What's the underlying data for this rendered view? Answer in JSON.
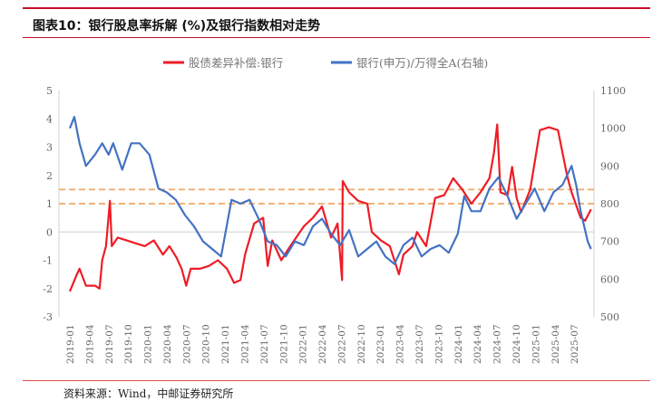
{
  "header": {
    "title": "图表10：银行股息率拆解 (%)及银行指数相对走势"
  },
  "footer": {
    "source": "资料来源：Wind，中邮证券研究所"
  },
  "chart_data": {
    "type": "line",
    "title": "图表10：银行股息率拆解 (%)及银行指数相对走势",
    "x_unit": "months since 2019-01",
    "x_tick_labels": [
      "2019-01",
      "2019-04",
      "2019-07",
      "2019-10",
      "2020-01",
      "2020-04",
      "2020-07",
      "2020-10",
      "2021-01",
      "2021-04",
      "2021-07",
      "2021-10",
      "2022-01",
      "2022-04",
      "2022-07",
      "2022-10",
      "2023-01",
      "2023-04",
      "2023-07",
      "2023-10",
      "2024-01",
      "2024-04",
      "2024-07",
      "2024-10",
      "2025-01",
      "2025-04",
      "2025-07"
    ],
    "y_left": {
      "min": -3,
      "max": 5,
      "ticks": [
        "-3",
        "-2",
        "-1",
        "0",
        "1",
        "2",
        "3",
        "4",
        "5"
      ]
    },
    "y_right": {
      "min": 500,
      "max": 1100,
      "ticks": [
        "500",
        "600",
        "700",
        "800",
        "900",
        "1000",
        "1100"
      ]
    },
    "reference_lines": [
      {
        "value": 1.5,
        "axis": "left",
        "color": "#f0a868"
      },
      {
        "value": 1.0,
        "axis": "left",
        "color": "#f0a868"
      }
    ],
    "legend_position": "top-center",
    "series": [
      {
        "name": "股债差异补偿:银行",
        "axis": "left",
        "color": "#ee1c25",
        "x": [
          0,
          1.1,
          1.5,
          2.5,
          3.9,
          4.6,
          5,
          5.6,
          6.2,
          6.5,
          7.4,
          8.8,
          10.2,
          11.6,
          13,
          14.4,
          15.4,
          16.5,
          17.3,
          18,
          18.7,
          20.1,
          21.5,
          22.9,
          24.3,
          25.4,
          26.4,
          27.1,
          28.5,
          29.9,
          30.6,
          31.3,
          32.7,
          34.1,
          36.2,
          37.6,
          39,
          40.4,
          41.4,
          42.1,
          42.2,
          43.2,
          44.6,
          46,
          46.7,
          48.1,
          49.5,
          50.9,
          51.6,
          53,
          53.7,
          55.1,
          56.5,
          57.9,
          59.3,
          60.7,
          62.1,
          63.5,
          64.9,
          65.6,
          66.1,
          66.6,
          67.7,
          68.4,
          69.1,
          69.8,
          71.2,
          72.7,
          74.1,
          75.5,
          76.9,
          77.6,
          79,
          79.7,
          80.6
        ],
        "y": [
          -2.1,
          -1.5,
          -1.3,
          -1.9,
          -1.9,
          -2.0,
          -1.0,
          -0.5,
          1.1,
          -0.5,
          -0.2,
          -0.3,
          -0.4,
          -0.5,
          -0.3,
          -0.8,
          -0.5,
          -0.9,
          -1.3,
          -1.9,
          -1.3,
          -1.3,
          -1.2,
          -1.0,
          -1.3,
          -1.8,
          -1.7,
          -0.8,
          0.3,
          0.5,
          -1.2,
          -0.3,
          -1.0,
          -0.5,
          0.2,
          0.5,
          0.9,
          -0.2,
          0.3,
          -1.7,
          1.8,
          1.4,
          1.1,
          1.0,
          0.0,
          -0.3,
          -0.5,
          -1.5,
          -0.8,
          -0.5,
          0.0,
          -0.5,
          1.2,
          1.3,
          1.9,
          1.5,
          1.0,
          1.4,
          1.9,
          2.8,
          3.8,
          1.4,
          1.3,
          2.3,
          1.2,
          0.7,
          1.5,
          3.6,
          3.7,
          3.6,
          2.0,
          1.4,
          0.5,
          0.4,
          0.8
        ]
      },
      {
        "name": "银行(申万)/万得全A(右轴)",
        "axis": "right",
        "color": "#4472c4",
        "x": [
          0,
          0.7,
          1.5,
          2.5,
          3.9,
          5,
          6,
          6.7,
          8.1,
          9.5,
          10.8,
          12.3,
          13.7,
          15,
          16.4,
          17.8,
          19.2,
          20.6,
          22,
          23.4,
          25,
          26.4,
          27.8,
          29.2,
          30.6,
          32,
          33.4,
          34.8,
          36.2,
          37.6,
          39,
          40.4,
          41.8,
          43.2,
          44.6,
          46,
          47.4,
          48.8,
          50.2,
          51.6,
          53,
          54.4,
          55.8,
          57.2,
          58.6,
          60,
          61,
          62.1,
          63.5,
          64.9,
          66.3,
          67.7,
          69.1,
          70.5,
          71.9,
          73.4,
          74.8,
          76.2,
          77.6,
          78.3,
          79,
          80.1,
          80.6
        ],
        "y": [
          1000,
          1030,
          960,
          900,
          930,
          960,
          930,
          960,
          890,
          960,
          960,
          930,
          840,
          830,
          810,
          770,
          740,
          700,
          680,
          660,
          810,
          800,
          810,
          760,
          700,
          690,
          660,
          700,
          690,
          740,
          760,
          720,
          690,
          730,
          660,
          680,
          700,
          660,
          640,
          690,
          710,
          660,
          680,
          690,
          670,
          720,
          820,
          780,
          780,
          840,
          870,
          820,
          760,
          800,
          840,
          780,
          830,
          850,
          900,
          850,
          780,
          700,
          680
        ]
      }
    ]
  }
}
